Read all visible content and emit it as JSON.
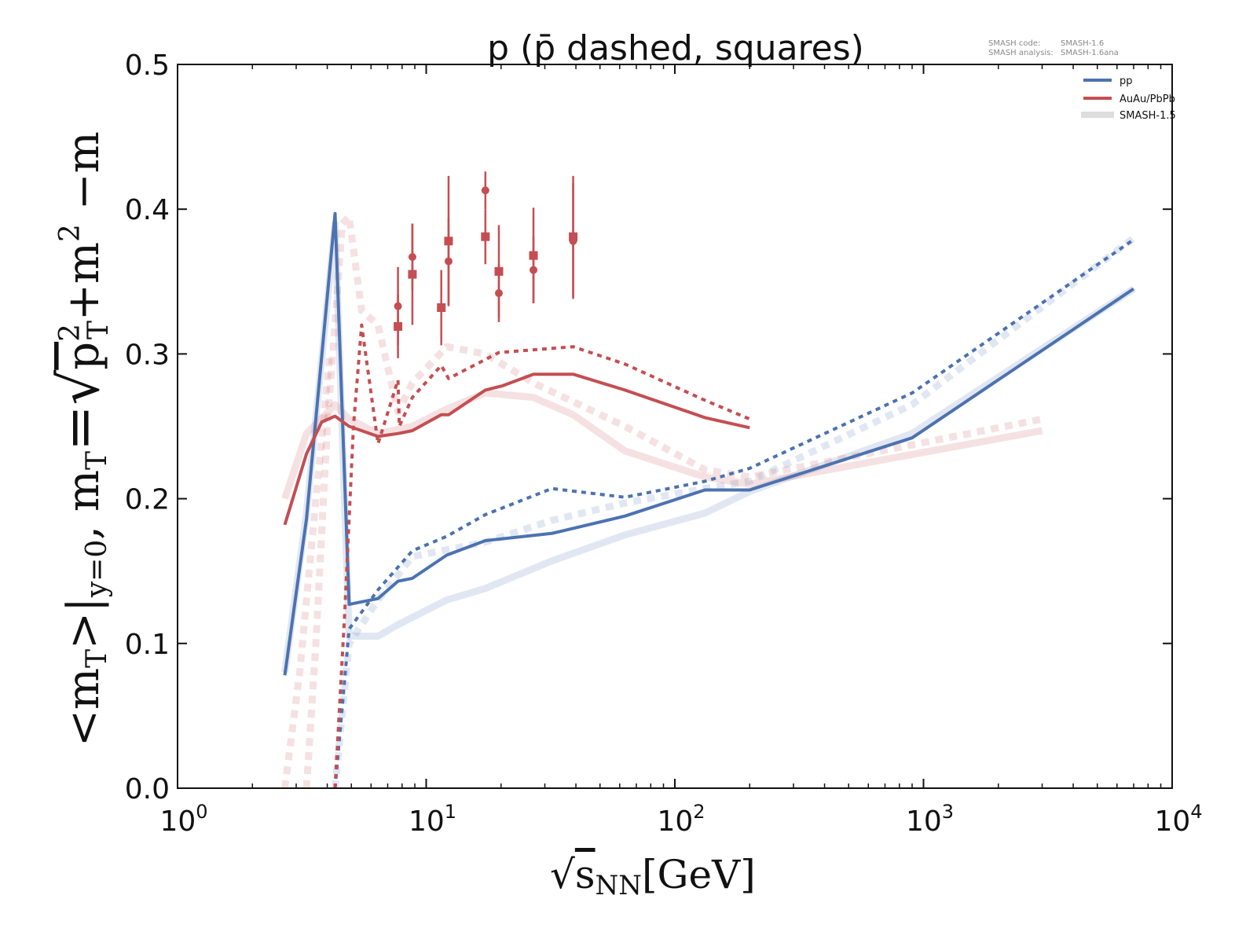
{
  "chart_data": {
    "type": "line",
    "title": "p (p̄ dashed, squares)",
    "xlabel": {
      "root": "√",
      "s": "s",
      "sub": "NN",
      "unit": "[GeV]"
    },
    "ylabel": {
      "p1": "<m",
      "p1sub": "T",
      "p2": ">|",
      "p2sub": "y=0",
      "p3": ", m",
      "p3sub": "T",
      "p4": "=√",
      "p5": "p",
      "p5sup": "2",
      "p5sub": "T",
      "p6": "+m",
      "p6sup": "2",
      "p7": " −m"
    },
    "xscale": "log",
    "xlim": [
      1,
      10000
    ],
    "ylim": [
      0.0,
      0.5
    ],
    "xticks": [
      {
        "v": 1,
        "base": "10",
        "exp": "0"
      },
      {
        "v": 10,
        "base": "10",
        "exp": "1"
      },
      {
        "v": 100,
        "base": "10",
        "exp": "2"
      },
      {
        "v": 1000,
        "base": "10",
        "exp": "3"
      },
      {
        "v": 10000,
        "base": "10",
        "exp": "4"
      }
    ],
    "yticks": [
      {
        "v": 0.0,
        "label": "0.0"
      },
      {
        "v": 0.1,
        "label": "0.1"
      },
      {
        "v": 0.2,
        "label": "0.2"
      },
      {
        "v": 0.3,
        "label": "0.3"
      },
      {
        "v": 0.4,
        "label": "0.4"
      },
      {
        "v": 0.5,
        "label": "0.5"
      }
    ],
    "meta": {
      "code_label": "SMASH code:",
      "code_value": "SMASH-1.6",
      "analysis_label": "SMASH analysis:",
      "analysis_value": "SMASH-1.6ana"
    },
    "legend": {
      "placement": "top-right",
      "entries": [
        {
          "label": "pp",
          "color": "#4c72b0"
        },
        {
          "label": "AuAu/PbPb",
          "color": "#c44e52"
        },
        {
          "label": "SMASH-1.5",
          "color": "#dddddd"
        }
      ]
    },
    "series": [
      {
        "name": "SMASH-1.5 pp (p)",
        "color": "#4c72b0",
        "faint": true,
        "dashed": false,
        "points": [
          [
            2.7,
            0.08
          ],
          [
            3.3,
            0.19
          ],
          [
            4.3,
            0.39
          ],
          [
            4.9,
            0.105
          ],
          [
            6.4,
            0.105
          ],
          [
            7.7,
            0.113
          ],
          [
            8.8,
            0.118
          ],
          [
            12.1,
            0.13
          ],
          [
            17.3,
            0.138
          ],
          [
            32,
            0.157
          ],
          [
            63,
            0.175
          ],
          [
            132,
            0.19
          ],
          [
            200,
            0.205
          ],
          [
            900,
            0.245
          ],
          [
            7000,
            0.345
          ]
        ]
      },
      {
        "name": "SMASH-1.5 pp (pbar)",
        "color": "#4c72b0",
        "faint": true,
        "dashed": true,
        "points": [
          [
            4.3,
            0.0
          ],
          [
            4.9,
            0.1
          ],
          [
            6.4,
            0.13
          ],
          [
            8.8,
            0.16
          ],
          [
            17.3,
            0.17
          ],
          [
            32,
            0.185
          ],
          [
            63,
            0.197
          ],
          [
            132,
            0.207
          ],
          [
            200,
            0.212
          ],
          [
            900,
            0.265
          ],
          [
            7000,
            0.38
          ]
        ]
      },
      {
        "name": "SMASH-1.5 AuAu/PbPb (p)",
        "color": "#c44e52",
        "faint": true,
        "dashed": false,
        "points": [
          [
            2.7,
            0.2
          ],
          [
            3.3,
            0.245
          ],
          [
            4.3,
            0.265
          ],
          [
            4.9,
            0.255
          ],
          [
            6.4,
            0.245
          ],
          [
            8.8,
            0.25
          ],
          [
            12.1,
            0.262
          ],
          [
            17.3,
            0.273
          ],
          [
            27,
            0.27
          ],
          [
            39,
            0.258
          ],
          [
            63,
            0.233
          ],
          [
            132,
            0.215
          ],
          [
            200,
            0.21
          ],
          [
            3000,
            0.247
          ]
        ]
      },
      {
        "name": "SMASH-1.5 AuAu/PbPb (pbar)",
        "color": "#c44e52",
        "faint": true,
        "dashed": true,
        "points": [
          [
            3.3,
            0.0
          ],
          [
            3.6,
            0.1
          ],
          [
            4.0,
            0.25
          ],
          [
            4.6,
            0.39
          ],
          [
            4.9,
            0.395
          ],
          [
            5.5,
            0.33
          ],
          [
            6.4,
            0.32
          ],
          [
            7.7,
            0.26
          ],
          [
            8.8,
            0.28
          ],
          [
            12.1,
            0.305
          ],
          [
            17.3,
            0.3
          ],
          [
            27,
            0.28
          ],
          [
            63,
            0.25
          ],
          [
            132,
            0.22
          ],
          [
            200,
            0.215
          ],
          [
            3000,
            0.255
          ]
        ]
      },
      {
        "name": "SMASH-1.5 AuAu (pbar, low)",
        "color": "#c44e52",
        "faint": true,
        "dashed": true,
        "points": [
          [
            2.7,
            0.0
          ],
          [
            3.1,
            0.08
          ],
          [
            3.6,
            0.2
          ],
          [
            4.1,
            0.3
          ]
        ]
      },
      {
        "name": "pp (p)",
        "color": "#4c72b0",
        "faint": false,
        "dashed": false,
        "points": [
          [
            2.7,
            0.078
          ],
          [
            3.3,
            0.186
          ],
          [
            4.3,
            0.397
          ],
          [
            4.9,
            0.127
          ],
          [
            6.4,
            0.131
          ],
          [
            7.7,
            0.143
          ],
          [
            8.8,
            0.145
          ],
          [
            12.1,
            0.161
          ],
          [
            17.3,
            0.171
          ],
          [
            32,
            0.176
          ],
          [
            63,
            0.188
          ],
          [
            132,
            0.206
          ],
          [
            200,
            0.206
          ],
          [
            900,
            0.242
          ],
          [
            7000,
            0.345
          ]
        ]
      },
      {
        "name": "pp (pbar)",
        "color": "#4c72b0",
        "faint": false,
        "dashed": true,
        "points": [
          [
            4.3,
            0.0
          ],
          [
            4.9,
            0.11
          ],
          [
            6.4,
            0.137
          ],
          [
            8.8,
            0.164
          ],
          [
            12.1,
            0.174
          ],
          [
            17.3,
            0.189
          ],
          [
            32,
            0.207
          ],
          [
            63,
            0.201
          ],
          [
            132,
            0.212
          ],
          [
            200,
            0.221
          ],
          [
            900,
            0.273
          ],
          [
            7000,
            0.379
          ]
        ]
      },
      {
        "name": "AuAu/PbPb (p)",
        "color": "#c44e52",
        "faint": false,
        "dashed": false,
        "points": [
          [
            2.7,
            0.182
          ],
          [
            3.3,
            0.231
          ],
          [
            3.8,
            0.253
          ],
          [
            4.3,
            0.257
          ],
          [
            4.9,
            0.25
          ],
          [
            6.4,
            0.243
          ],
          [
            7.7,
            0.245
          ],
          [
            8.8,
            0.247
          ],
          [
            11.5,
            0.258
          ],
          [
            12.3,
            0.258
          ],
          [
            17.3,
            0.275
          ],
          [
            20.3,
            0.278
          ],
          [
            27,
            0.286
          ],
          [
            39,
            0.286
          ],
          [
            63,
            0.275
          ],
          [
            132,
            0.256
          ],
          [
            200,
            0.249
          ]
        ]
      },
      {
        "name": "AuAu/PbPb (pbar)",
        "color": "#c44e52",
        "faint": false,
        "dashed": true,
        "points": [
          [
            4.3,
            0.0
          ],
          [
            4.7,
            0.12
          ],
          [
            5.1,
            0.25
          ],
          [
            5.5,
            0.32
          ],
          [
            6.4,
            0.238
          ],
          [
            7.7,
            0.282
          ],
          [
            7.8,
            0.25
          ],
          [
            8.8,
            0.27
          ],
          [
            11.5,
            0.292
          ],
          [
            12.3,
            0.283
          ],
          [
            19.6,
            0.301
          ],
          [
            39,
            0.305
          ],
          [
            63,
            0.293
          ],
          [
            132,
            0.268
          ],
          [
            200,
            0.255
          ]
        ]
      }
    ],
    "experimental": {
      "color": "#c44e52",
      "squares": [
        {
          "x": 7.7,
          "y": 0.319,
          "err": 0.022
        },
        {
          "x": 8.8,
          "y": 0.355,
          "err": 0.035
        },
        {
          "x": 11.5,
          "y": 0.332,
          "err": 0.026
        },
        {
          "x": 12.3,
          "y": 0.378,
          "err": 0.045
        },
        {
          "x": 17.3,
          "y": 0.381,
          "err": 0.019
        },
        {
          "x": 19.6,
          "y": 0.357,
          "err": 0.032
        },
        {
          "x": 27,
          "y": 0.368,
          "err": 0.033
        },
        {
          "x": 39,
          "y": 0.381,
          "err": 0.042
        }
      ],
      "circles": [
        {
          "x": 7.7,
          "y": 0.333,
          "err": 0.027
        },
        {
          "x": 8.8,
          "y": 0.367,
          "err": 0.023
        },
        {
          "x": 12.3,
          "y": 0.364,
          "err": 0.03
        },
        {
          "x": 17.3,
          "y": 0.413,
          "err": 0.013
        },
        {
          "x": 19.6,
          "y": 0.342,
          "err": 0.02
        },
        {
          "x": 27,
          "y": 0.358,
          "err": 0.023
        },
        {
          "x": 39,
          "y": 0.378,
          "err": 0.04
        }
      ]
    }
  }
}
